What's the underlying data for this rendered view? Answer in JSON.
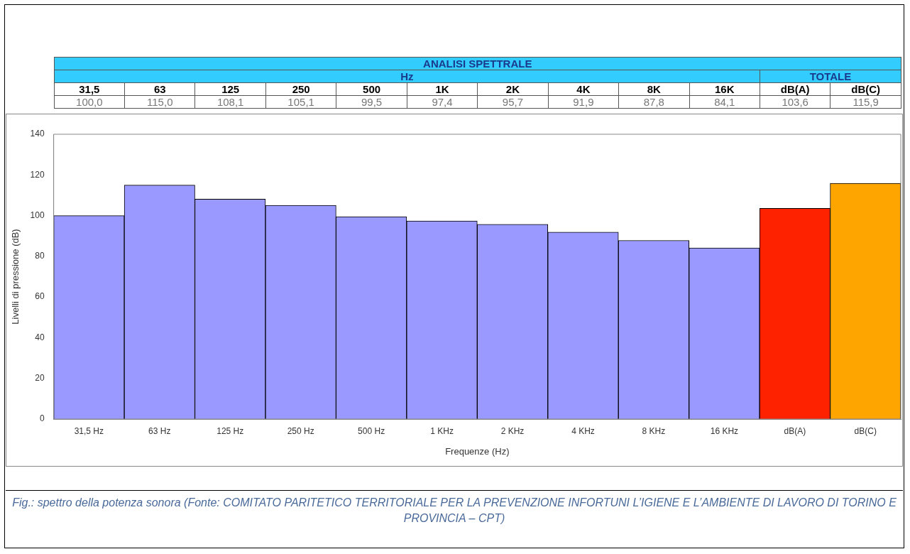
{
  "chart_data": {
    "type": "bar",
    "title": "ANALISI SPETTRALE",
    "categories": [
      "31,5 Hz",
      "63 Hz",
      "125 Hz",
      "250 Hz",
      "500 Hz",
      "1 KHz",
      "2 KHz",
      "4 KHz",
      "8 KHz",
      "16 KHz",
      "dB(A)",
      "dB(C)"
    ],
    "values": [
      100.0,
      115.0,
      108.1,
      105.1,
      99.5,
      97.4,
      95.7,
      91.9,
      87.8,
      84.1,
      103.6,
      115.9
    ],
    "value_labels": [
      "100,0",
      "115,0",
      "108,1",
      "105,1",
      "99,5",
      "97,4",
      "95,7",
      "91,9",
      "87,8",
      "84,1",
      "103,6",
      "115,9"
    ],
    "colors": [
      "#9999ff",
      "#9999ff",
      "#9999ff",
      "#9999ff",
      "#9999ff",
      "#9999ff",
      "#9999ff",
      "#9999ff",
      "#9999ff",
      "#9999ff",
      "#ff2200",
      "#ffa500"
    ],
    "xlabel": "Frequenze (Hz)",
    "ylabel": "Livelli di pressione (dB)",
    "ylim": [
      0,
      140
    ],
    "yticks": [
      0,
      20,
      40,
      60,
      80,
      100,
      120,
      140
    ],
    "grid": false,
    "legend": false,
    "annotations": [
      "Hz",
      "TOTALE",
      "31,5",
      "63",
      "125",
      "250",
      "500",
      "1K",
      "2K",
      "4K",
      "8K",
      "16K",
      "dB(A)",
      "dB(C)",
      "Fig.: spettro della potenza sonora (Fonte: COMITATO PARITETICO TERRITORIALE PER LA PREVENZIONE INFORTUNI L’IGIENE E L’AMBIENTE DI LAVORO DI TORINO E PROVINCIA – CPT)"
    ]
  }
}
